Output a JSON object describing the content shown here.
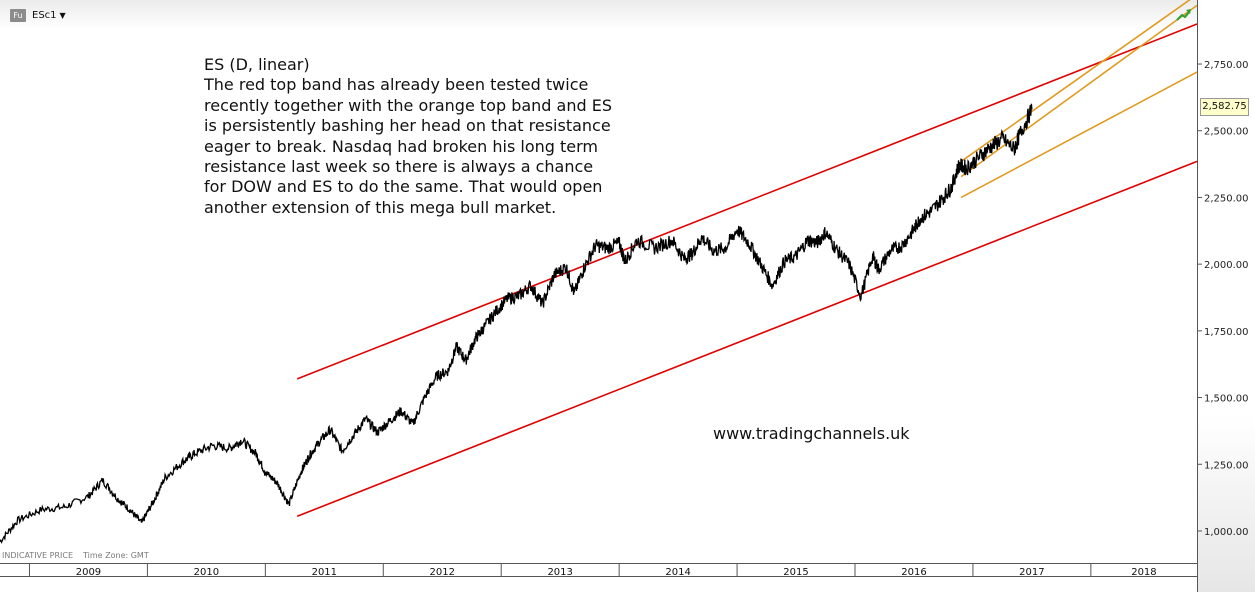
{
  "toolbar": {
    "badge": "Fu",
    "symbol": "ESc1",
    "caret": "▼"
  },
  "annotation": {
    "lines": [
      "ES (D, linear)",
      "The red top band has already been tested twice",
      "recently together with the orange top band and ES",
      "is persistently bashing her head on that resistance",
      "eager to break. Nasdaq had broken his long term",
      "resistance last week so there is always a chance",
      "for DOW and ES to do the same. That would open",
      "another extension of this mega bull market."
    ]
  },
  "watermark": "www.tradingchannels.uk",
  "footnote": {
    "price_type": "INDICATIVE PRICE",
    "timezone": "Time Zone: GMT"
  },
  "last_price_label": "2,582.75",
  "colors": {
    "price": "#000000",
    "red_band": "#e00000",
    "orange_band": "#e09a1e",
    "trend_icon": "#2ca02c"
  },
  "icons": {
    "trend": "trend-up-icon"
  },
  "chart_data": {
    "type": "line",
    "title": "",
    "xlabel": "",
    "ylabel": "",
    "x_range": [
      2008.75,
      2018.9
    ],
    "ylim": [
      880,
      2990
    ],
    "y_ticks": [
      1000,
      1250,
      1500,
      1750,
      2000,
      2250,
      2500,
      2750
    ],
    "y_tick_labels": [
      "1,000.00",
      "1,250.00",
      "1,500.00",
      "1,750.00",
      "2,000.00",
      "2,250.00",
      "2,500.00",
      "2,750.00"
    ],
    "x_tick_labels": [
      "2009",
      "2010",
      "2011",
      "2012",
      "2013",
      "2014",
      "2015",
      "2016",
      "2017",
      "2018"
    ],
    "last_price": 2582.75,
    "series": [
      {
        "x": [
          2008.75,
          2008.9,
          2009.1,
          2009.3,
          2009.5,
          2009.62,
          2009.75,
          2009.85,
          2009.95,
          2010.05,
          2010.15,
          2010.3,
          2010.4,
          2010.55,
          2010.7,
          2010.8,
          2010.92,
          2011.0,
          2011.1,
          2011.2,
          2011.3,
          2011.37,
          2011.45,
          2011.55,
          2011.65,
          2011.75,
          2011.85,
          2011.95,
          2012.05,
          2012.15,
          2012.25,
          2012.35,
          2012.45,
          2012.55,
          2012.62,
          2012.7,
          2012.78,
          2012.85,
          2012.95,
          2013.05,
          2013.15,
          2013.25,
          2013.35,
          2013.45,
          2013.55,
          2013.62,
          2013.7,
          2013.8,
          2013.9,
          2014.0,
          2014.05,
          2014.15,
          2014.3,
          2014.45,
          2014.55,
          2014.62,
          2014.7,
          2014.8,
          2014.9,
          2015.0,
          2015.1,
          2015.2,
          2015.3,
          2015.4,
          2015.5,
          2015.6,
          2015.68,
          2015.75,
          2015.85,
          2015.95,
          2016.05,
          2016.15,
          2016.2,
          2016.3,
          2016.4,
          2016.5,
          2016.55,
          2016.65,
          2016.75,
          2016.82,
          2016.88,
          2016.95,
          2017.05,
          2017.15,
          2017.25,
          2017.35,
          2017.4,
          2017.5
        ],
        "y": [
          960,
          1040,
          1080,
          1090,
          1130,
          1190,
          1120,
          1080,
          1030,
          1110,
          1200,
          1260,
          1290,
          1320,
          1310,
          1340,
          1290,
          1220,
          1180,
          1100,
          1220,
          1280,
          1330,
          1380,
          1300,
          1360,
          1420,
          1370,
          1410,
          1450,
          1400,
          1500,
          1580,
          1600,
          1690,
          1640,
          1720,
          1760,
          1820,
          1870,
          1880,
          1920,
          1850,
          1960,
          1990,
          1890,
          1985,
          2070,
          2060,
          2080,
          2010,
          2090,
          2060,
          2090,
          2020,
          2040,
          2100,
          2050,
          2060,
          2130,
          2080,
          2000,
          1920,
          2010,
          2030,
          2090,
          2080,
          2120,
          2050,
          2000,
          1880,
          2030,
          1980,
          2050,
          2070,
          2130,
          2170,
          2200,
          2250,
          2290,
          2370,
          2360,
          2400,
          2440,
          2470,
          2430,
          2490,
          2580
        ]
      }
    ],
    "channels": [
      {
        "color": "red",
        "x": [
          2011.27,
          2018.9
        ],
        "y": [
          1570,
          2900
        ]
      },
      {
        "color": "red",
        "x": [
          2011.27,
          2018.9
        ],
        "y": [
          1055,
          2385
        ]
      },
      {
        "color": "orange",
        "x": [
          2016.9,
          2018.9
        ],
        "y": [
          2385,
          3010
        ]
      },
      {
        "color": "orange",
        "x": [
          2016.9,
          2018.9
        ],
        "y": [
          2328,
          2970
        ]
      },
      {
        "color": "orange",
        "x": [
          2016.9,
          2018.9
        ],
        "y": [
          2250,
          2720
        ]
      }
    ]
  }
}
